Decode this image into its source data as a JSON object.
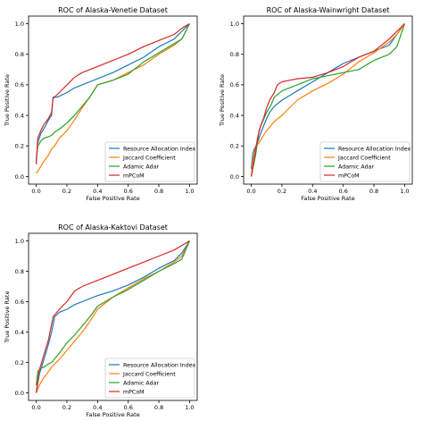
{
  "figure": {
    "background": "#ffffff"
  },
  "chart_data": [
    {
      "type": "line",
      "title": "ROC of Alaska-Venetie Dataset",
      "xlabel": "False Positive Rate",
      "ylabel": "True Positive Rate",
      "xlim": [
        -0.05,
        1.05
      ],
      "ylim": [
        -0.05,
        1.05
      ],
      "xticks": [
        "0.0",
        "0.2",
        "0.4",
        "0.6",
        "0.8",
        "1.0"
      ],
      "yticks": [
        "0.0",
        "0.2",
        "0.4",
        "0.6",
        "0.8",
        "1.0"
      ],
      "grid": false,
      "legend_position": "lower right",
      "series": [
        {
          "name": "Resource Allocation Index",
          "color": "#1f77b4",
          "x": [
            0,
            0.01,
            0.03,
            0.06,
            0.08,
            0.1,
            0.11,
            0.14,
            0.2,
            0.25,
            0.3,
            0.35,
            0.4,
            0.5,
            0.6,
            0.7,
            0.8,
            0.9,
            0.95,
            1.0
          ],
          "y": [
            0.1,
            0.22,
            0.28,
            0.33,
            0.37,
            0.4,
            0.52,
            0.52,
            0.55,
            0.58,
            0.6,
            0.62,
            0.64,
            0.68,
            0.73,
            0.78,
            0.85,
            0.9,
            0.95,
            1.0
          ]
        },
        {
          "name": "Jaccard Coefficient",
          "color": "#ff7f0e",
          "x": [
            0,
            0.02,
            0.05,
            0.08,
            0.1,
            0.12,
            0.15,
            0.2,
            0.25,
            0.3,
            0.35,
            0.4,
            0.5,
            0.6,
            0.7,
            0.8,
            0.9,
            0.95,
            1.0
          ],
          "y": [
            0.02,
            0.05,
            0.1,
            0.14,
            0.18,
            0.2,
            0.25,
            0.3,
            0.37,
            0.45,
            0.52,
            0.6,
            0.63,
            0.68,
            0.73,
            0.8,
            0.86,
            0.9,
            1.0
          ]
        },
        {
          "name": "Adamic Adar",
          "color": "#2ca02c",
          "x": [
            0,
            0.01,
            0.03,
            0.05,
            0.08,
            0.1,
            0.12,
            0.15,
            0.2,
            0.25,
            0.3,
            0.35,
            0.4,
            0.5,
            0.6,
            0.7,
            0.8,
            0.9,
            0.95,
            1.0
          ],
          "y": [
            0.1,
            0.2,
            0.23,
            0.25,
            0.26,
            0.27,
            0.29,
            0.31,
            0.35,
            0.4,
            0.46,
            0.52,
            0.6,
            0.63,
            0.67,
            0.75,
            0.81,
            0.87,
            0.9,
            1.0
          ]
        },
        {
          "name": "mPCoM",
          "color": "#d62728",
          "x": [
            0,
            0.01,
            0.03,
            0.05,
            0.08,
            0.1,
            0.11,
            0.15,
            0.2,
            0.25,
            0.3,
            0.4,
            0.5,
            0.6,
            0.7,
            0.8,
            0.9,
            0.95,
            1.0
          ],
          "y": [
            0.08,
            0.25,
            0.3,
            0.34,
            0.38,
            0.42,
            0.51,
            0.55,
            0.6,
            0.65,
            0.68,
            0.72,
            0.76,
            0.8,
            0.85,
            0.89,
            0.93,
            0.97,
            1.0
          ]
        }
      ]
    },
    {
      "type": "line",
      "title": "ROC of Alaska-Wainwright Dataset",
      "xlabel": "False Positive Rate",
      "ylabel": "True Positive Rate",
      "xlim": [
        -0.05,
        1.05
      ],
      "ylim": [
        -0.05,
        1.05
      ],
      "xticks": [
        "0.0",
        "0.2",
        "0.4",
        "0.6",
        "0.8",
        "1.0"
      ],
      "yticks": [
        "0.0",
        "0.2",
        "0.4",
        "0.6",
        "0.8",
        "1.0"
      ],
      "grid": false,
      "legend_position": "lower right",
      "series": [
        {
          "name": "Resource Allocation Index",
          "color": "#1f77b4",
          "x": [
            0,
            0.01,
            0.02,
            0.04,
            0.06,
            0.08,
            0.1,
            0.12,
            0.15,
            0.2,
            0.25,
            0.3,
            0.4,
            0.5,
            0.6,
            0.7,
            0.8,
            0.9,
            0.95,
            1.0
          ],
          "y": [
            0.05,
            0.15,
            0.18,
            0.22,
            0.28,
            0.33,
            0.38,
            0.42,
            0.46,
            0.5,
            0.53,
            0.56,
            0.62,
            0.68,
            0.74,
            0.78,
            0.82,
            0.86,
            0.93,
            1.0
          ]
        },
        {
          "name": "Jaccard Coefficient",
          "color": "#ff7f0e",
          "x": [
            0,
            0.01,
            0.03,
            0.05,
            0.08,
            0.1,
            0.15,
            0.2,
            0.25,
            0.3,
            0.4,
            0.5,
            0.6,
            0.7,
            0.8,
            0.9,
            0.95,
            1.0
          ],
          "y": [
            0.0,
            0.1,
            0.2,
            0.22,
            0.27,
            0.3,
            0.36,
            0.4,
            0.45,
            0.5,
            0.56,
            0.61,
            0.67,
            0.75,
            0.81,
            0.88,
            0.93,
            1.0
          ]
        },
        {
          "name": "Adamic Adar",
          "color": "#2ca02c",
          "x": [
            0,
            0.01,
            0.03,
            0.05,
            0.07,
            0.1,
            0.13,
            0.15,
            0.2,
            0.25,
            0.3,
            0.4,
            0.5,
            0.6,
            0.7,
            0.8,
            0.9,
            0.95,
            1.0
          ],
          "y": [
            0.0,
            0.05,
            0.15,
            0.3,
            0.35,
            0.42,
            0.47,
            0.52,
            0.56,
            0.58,
            0.6,
            0.64,
            0.66,
            0.68,
            0.7,
            0.76,
            0.8,
            0.85,
            1.0
          ]
        },
        {
          "name": "mPCoM",
          "color": "#d62728",
          "x": [
            0,
            0.02,
            0.04,
            0.06,
            0.08,
            0.1,
            0.12,
            0.15,
            0.17,
            0.2,
            0.25,
            0.3,
            0.4,
            0.5,
            0.6,
            0.7,
            0.8,
            0.9,
            0.95,
            1.0
          ],
          "y": [
            0.0,
            0.12,
            0.25,
            0.33,
            0.38,
            0.45,
            0.5,
            0.55,
            0.6,
            0.62,
            0.63,
            0.64,
            0.65,
            0.68,
            0.72,
            0.78,
            0.82,
            0.9,
            0.95,
            1.0
          ]
        }
      ]
    },
    {
      "type": "line",
      "title": "ROC of Alaska-Kaktovi Dataset",
      "xlabel": "False Positive Rate",
      "ylabel": "True Positive Rate",
      "xlim": [
        -0.05,
        1.05
      ],
      "ylim": [
        -0.05,
        1.05
      ],
      "xticks": [
        "0.0",
        "0.2",
        "0.4",
        "0.6",
        "0.8",
        "1.0"
      ],
      "yticks": [
        "0.0",
        "0.2",
        "0.4",
        "0.6",
        "0.8",
        "1.0"
      ],
      "grid": false,
      "legend_position": "lower right",
      "series": [
        {
          "name": "Resource Allocation Index",
          "color": "#1f77b4",
          "x": [
            0,
            0.02,
            0.05,
            0.08,
            0.1,
            0.12,
            0.15,
            0.2,
            0.25,
            0.3,
            0.4,
            0.5,
            0.6,
            0.7,
            0.8,
            0.9,
            0.95,
            1.0
          ],
          "y": [
            0.0,
            0.12,
            0.22,
            0.32,
            0.4,
            0.5,
            0.53,
            0.55,
            0.58,
            0.6,
            0.64,
            0.67,
            0.71,
            0.76,
            0.82,
            0.87,
            0.92,
            1.0
          ]
        },
        {
          "name": "Jaccard Coefficient",
          "color": "#ff7f0e",
          "x": [
            0,
            0.02,
            0.05,
            0.08,
            0.1,
            0.15,
            0.2,
            0.25,
            0.3,
            0.35,
            0.4,
            0.5,
            0.6,
            0.7,
            0.8,
            0.9,
            0.95,
            1.0
          ],
          "y": [
            0.0,
            0.05,
            0.1,
            0.14,
            0.17,
            0.22,
            0.28,
            0.34,
            0.4,
            0.47,
            0.55,
            0.63,
            0.69,
            0.75,
            0.8,
            0.86,
            0.9,
            1.0
          ]
        },
        {
          "name": "Adamic Adar",
          "color": "#2ca02c",
          "x": [
            0,
            0.01,
            0.03,
            0.05,
            0.08,
            0.1,
            0.15,
            0.2,
            0.25,
            0.3,
            0.35,
            0.4,
            0.5,
            0.6,
            0.7,
            0.8,
            0.9,
            0.95,
            1.0
          ],
          "y": [
            0.05,
            0.14,
            0.16,
            0.17,
            0.19,
            0.2,
            0.26,
            0.33,
            0.38,
            0.44,
            0.5,
            0.57,
            0.63,
            0.68,
            0.74,
            0.8,
            0.85,
            0.88,
            1.0
          ]
        },
        {
          "name": "mPCoM",
          "color": "#d62728",
          "x": [
            0,
            0.02,
            0.05,
            0.08,
            0.1,
            0.11,
            0.15,
            0.2,
            0.25,
            0.3,
            0.4,
            0.5,
            0.6,
            0.7,
            0.8,
            0.9,
            0.95,
            1.0
          ],
          "y": [
            0.0,
            0.15,
            0.25,
            0.35,
            0.45,
            0.5,
            0.55,
            0.6,
            0.67,
            0.7,
            0.74,
            0.78,
            0.82,
            0.86,
            0.9,
            0.94,
            0.97,
            1.0
          ]
        }
      ]
    }
  ]
}
